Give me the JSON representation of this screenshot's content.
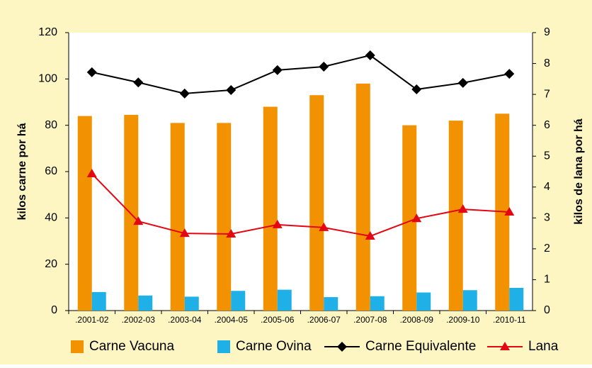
{
  "chart_data": {
    "type": "bar",
    "categories": [
      ".2001-02",
      ".2002-03",
      ".2003-04",
      ".2004-05",
      ".2005-06",
      ".2006-07",
      ".2007-08",
      ".2008-09",
      ".2009-10",
      ".2010-11"
    ],
    "series": [
      {
        "name": "Carne Vacuna",
        "type": "bar",
        "color": "#f39200",
        "values": [
          84,
          84.5,
          81,
          81,
          88,
          93,
          98,
          80,
          82,
          85
        ]
      },
      {
        "name": "Carne Ovina",
        "type": "bar",
        "color": "#1fb0e8",
        "values": [
          8,
          6.5,
          6,
          8.5,
          9,
          5.8,
          6.2,
          7.8,
          8.8,
          9.8
        ]
      },
      {
        "name": "Carne Equivalente",
        "type": "line",
        "marker": "diamond",
        "color": "#000000",
        "values": [
          102.9,
          98.5,
          93.7,
          95.2,
          103.8,
          105.3,
          110.2,
          95.5,
          98.3,
          102.2
        ]
      },
      {
        "name": "Lana",
        "type": "line",
        "marker": "triangle",
        "axis": "y2",
        "color": "#e30613",
        "values": [
          4.43,
          2.89,
          2.5,
          2.48,
          2.78,
          2.69,
          2.41,
          2.98,
          3.28,
          3.19
        ]
      }
    ],
    "ylabel": "kilos carne  por há",
    "y2label": "kilos de lana  por há",
    "ylim": [
      0,
      120
    ],
    "yticks": [
      0,
      20,
      40,
      60,
      80,
      100,
      120
    ],
    "y2lim": [
      0,
      9
    ],
    "y2ticks": [
      0,
      1,
      2,
      3,
      4,
      5,
      6,
      7,
      8,
      9
    ],
    "legend": "bottom"
  }
}
